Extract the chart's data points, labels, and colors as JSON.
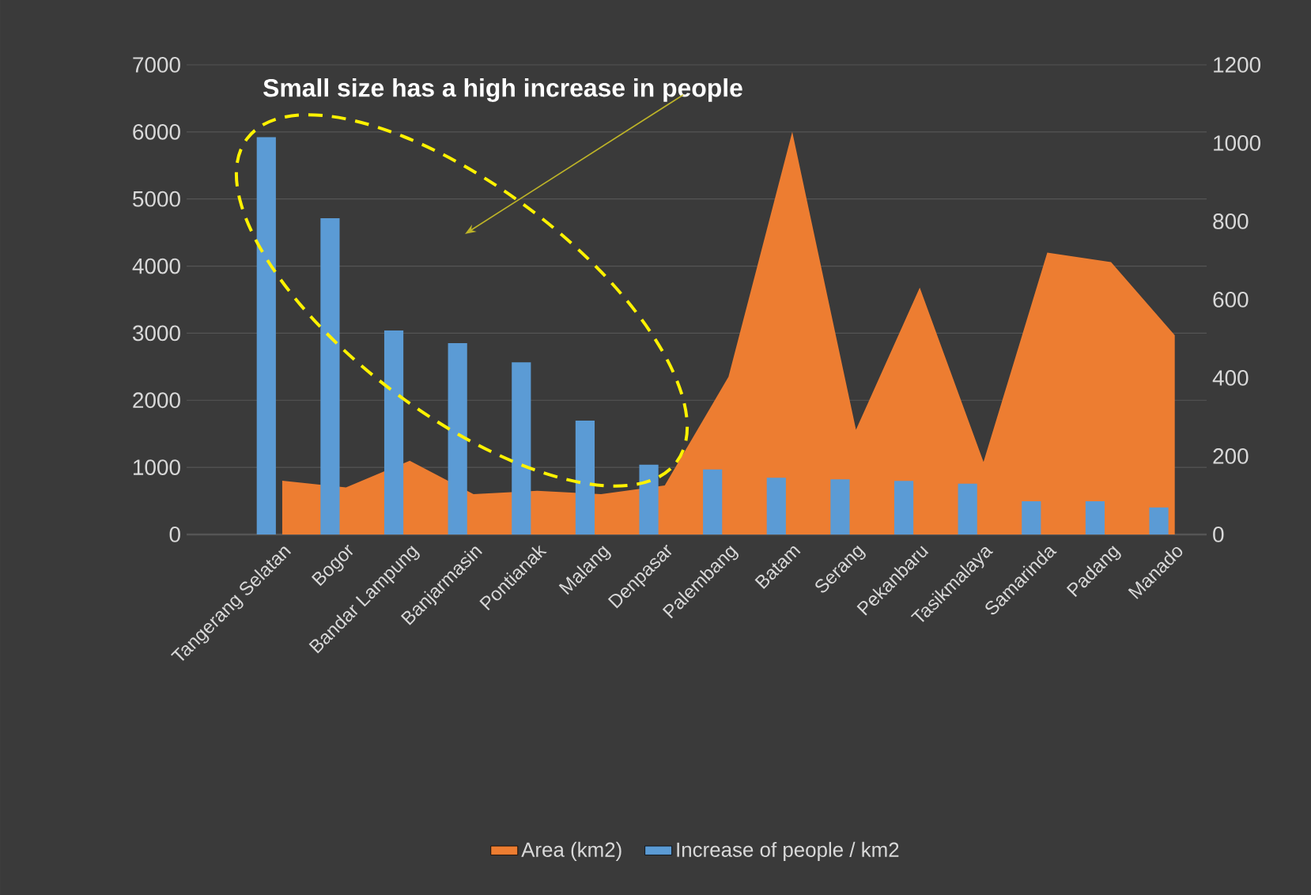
{
  "chart_data": {
    "type": "bar",
    "categories": [
      "Tangerang Selatan",
      "Bogor",
      "Bandar Lampung",
      "Banjarmasin",
      "Pontianak",
      "Malang",
      "Denpasar",
      "Palembang",
      "Batam",
      "Serang",
      "Pekanbaru",
      "Tasikmalaya",
      "Samarinda",
      "Padang",
      "Manado"
    ],
    "series": [
      {
        "name": "Area (km2)",
        "type": "area",
        "color": "#ed7d31",
        "values": [
          800,
          700,
          1100,
          600,
          650,
          600,
          730,
          2350,
          6000,
          1560,
          3680,
          1080,
          4200,
          4060,
          2970
        ]
      },
      {
        "name": "Increase of people / km2",
        "axis": "y2",
        "color": "#5b9bd5",
        "values": [
          1015,
          808,
          521,
          489,
          440,
          291,
          178,
          166,
          145,
          141,
          137,
          130,
          85,
          85,
          69
        ]
      }
    ],
    "ylim": [
      0,
      7000
    ],
    "yticks": [
      0,
      1000,
      2000,
      3000,
      4000,
      5000,
      6000,
      7000
    ],
    "y2lim": [
      0,
      1200
    ],
    "y2ticks": [
      0,
      200,
      400,
      600,
      800,
      1000,
      1200
    ],
    "grid": "y",
    "legend": "bottom",
    "annotations": [
      "Small size has a high increase in people"
    ]
  }
}
